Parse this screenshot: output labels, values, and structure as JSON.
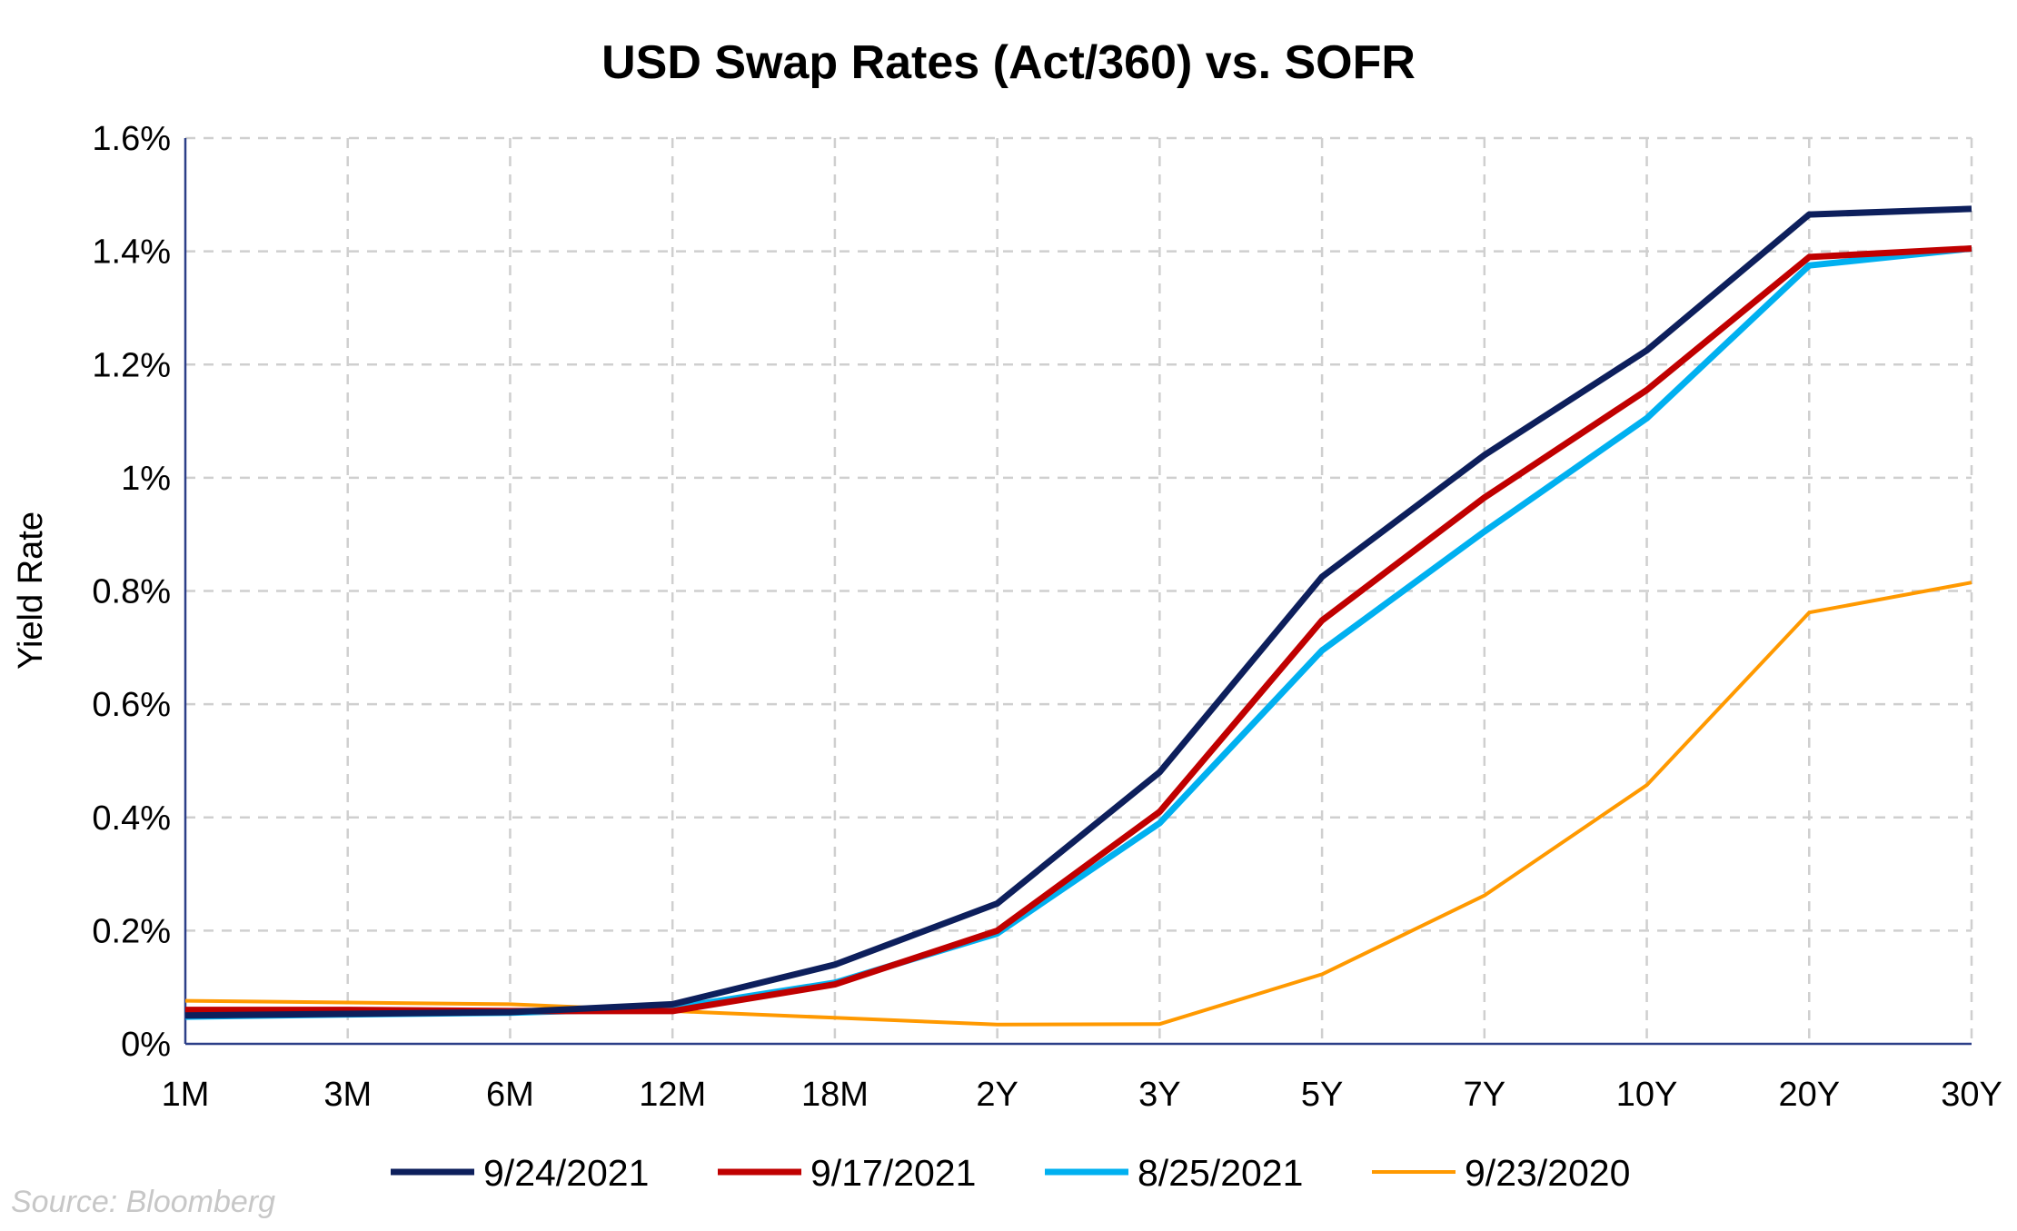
{
  "chart_data": {
    "type": "line",
    "title": "USD Swap Rates (Act/360) vs. SOFR",
    "xlabel": "",
    "ylabel": "Yield Rate",
    "categories": [
      "1M",
      "3M",
      "6M",
      "12M",
      "18M",
      "2Y",
      "3Y",
      "5Y",
      "7Y",
      "10Y",
      "20Y",
      "30Y"
    ],
    "y_ticks": [
      "0%",
      "0.2%",
      "0.4%",
      "0.6%",
      "0.8%",
      "1%",
      "1.2%",
      "1.4%",
      "1.6%"
    ],
    "ylim": [
      0,
      1.6
    ],
    "y_unit": "%",
    "grid": true,
    "legend_position": "bottom",
    "series": [
      {
        "name": "9/24/2021",
        "color": "#0d1f5c",
        "values": [
          0.05,
          0.053,
          0.056,
          0.07,
          0.14,
          0.248,
          0.48,
          0.825,
          1.04,
          1.225,
          1.465,
          1.475
        ]
      },
      {
        "name": "9/17/2021",
        "color": "#c00000",
        "values": [
          0.06,
          0.06,
          0.058,
          0.058,
          0.105,
          0.2,
          0.41,
          0.748,
          0.965,
          1.155,
          1.39,
          1.405
        ]
      },
      {
        "name": "8/25/2021",
        "color": "#00b0f0",
        "values": [
          0.048,
          0.052,
          0.055,
          0.063,
          0.108,
          0.195,
          0.39,
          0.695,
          0.905,
          1.105,
          1.375,
          1.405
        ]
      },
      {
        "name": "9/23/2020",
        "color": "#ff9900",
        "values": [
          0.076,
          0.073,
          0.07,
          0.058,
          0.046,
          0.034,
          0.035,
          0.123,
          0.262,
          0.457,
          0.762,
          0.815
        ]
      }
    ],
    "source": "Source: Bloomberg"
  }
}
